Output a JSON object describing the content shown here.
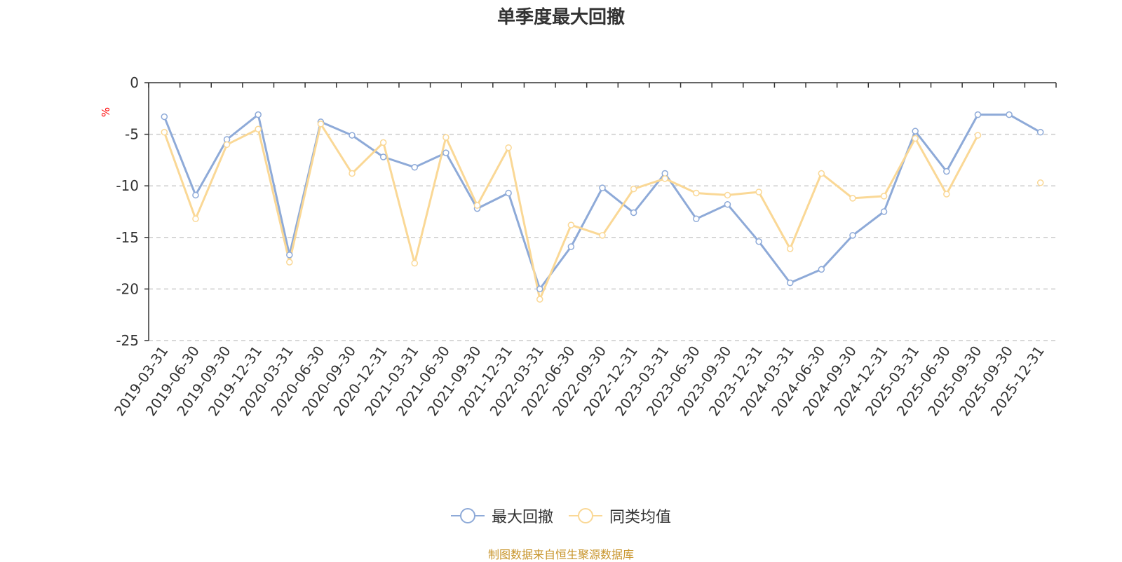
{
  "chart_data": {
    "type": "line",
    "title": "单季度最大回撤",
    "ylabel": "%",
    "ylim": [
      -25,
      0
    ],
    "yticks": [
      0,
      -5,
      -10,
      -15,
      -20,
      -25
    ],
    "grid": true,
    "legend_position": "bottom",
    "x": [
      "2019-03-31",
      "2019-06-30",
      "2019-09-30",
      "2019-12-31",
      "2020-03-31",
      "2020-06-30",
      "2020-09-30",
      "2020-12-31",
      "2021-03-31",
      "2021-06-30",
      "2021-09-30",
      "2021-12-31",
      "2022-03-31",
      "2022-06-30",
      "2022-09-30",
      "2022-12-31",
      "2023-03-31",
      "2023-06-30",
      "2023-09-30",
      "2023-12-31",
      "2024-03-31",
      "2024-06-30",
      "2024-09-30",
      "2024-12-31",
      "2025-03-31",
      "2025-06-30",
      "2025-09-30",
      "2025-09-30",
      "2025-12-31"
    ],
    "series": [
      {
        "name": "最大回撤",
        "color": "#8eaad8",
        "values": [
          -3.3,
          -10.9,
          -5.5,
          -3.1,
          -16.7,
          -3.8,
          -5.1,
          -7.2,
          -8.2,
          -6.8,
          -12.2,
          -10.7,
          -20.0,
          -15.9,
          -10.2,
          -12.6,
          -8.8,
          -13.2,
          -11.8,
          -15.4,
          -19.4,
          -18.1,
          -14.8,
          -12.5,
          -4.7,
          -8.6,
          -3.1,
          -3.1,
          -4.8
        ]
      },
      {
        "name": "同类均值",
        "color": "#fad896",
        "values": [
          -4.8,
          -13.2,
          -6.0,
          -4.5,
          -17.4,
          -4.0,
          -8.8,
          -5.8,
          -17.5,
          -5.3,
          -11.9,
          -6.3,
          -21.0,
          -13.8,
          -14.8,
          -10.3,
          -9.3,
          -10.7,
          -10.9,
          -10.6,
          -16.1,
          -8.8,
          -11.2,
          -11.0,
          -5.4,
          -10.8,
          -5.1,
          null,
          -9.7
        ]
      }
    ]
  },
  "source_note": "制图数据来自恒生聚源数据库"
}
